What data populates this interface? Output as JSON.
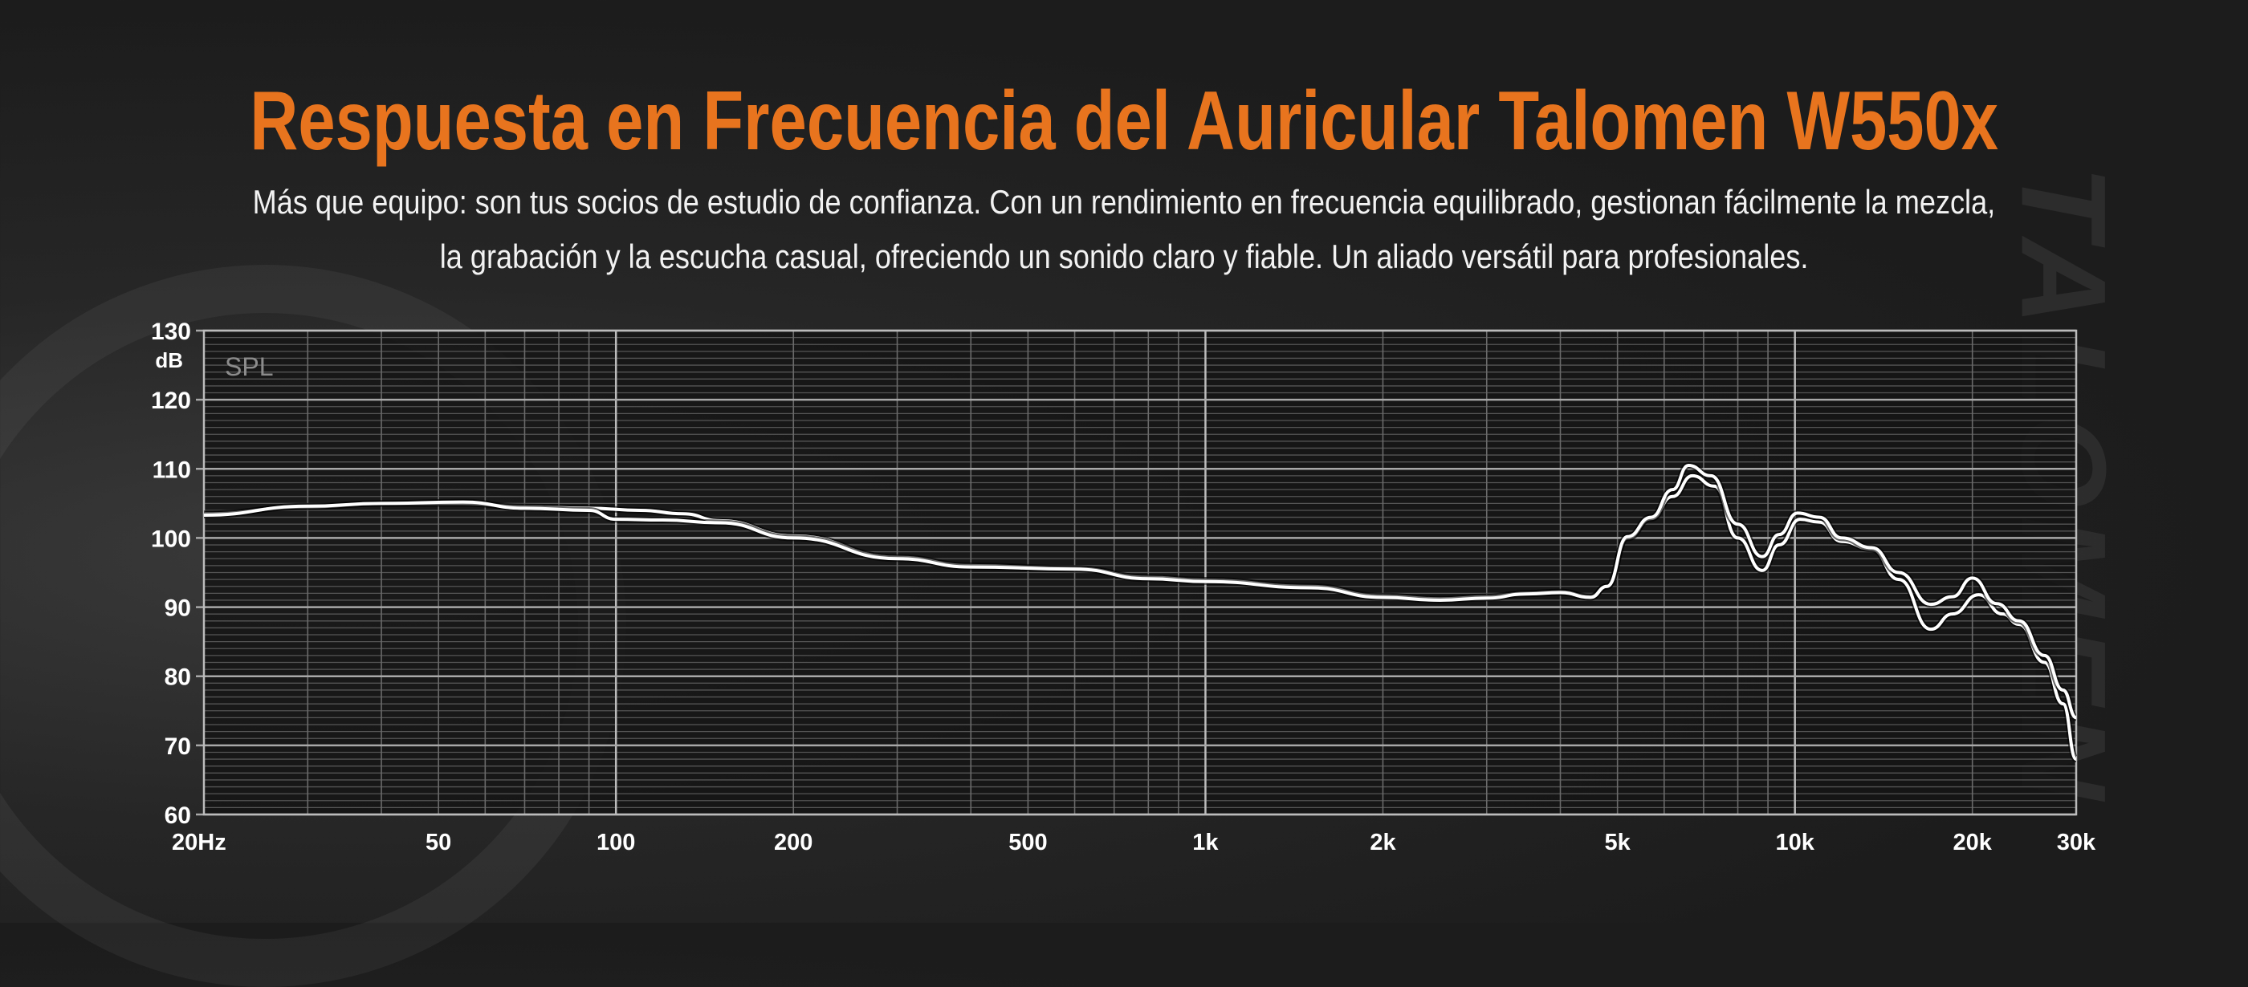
{
  "header": {
    "title": "Respuesta en Frecuencia del Auricular Talomen W550x",
    "subtitle_line1": "Más que equipo: son tus socios de estudio de confianza. Con un rendimiento en frecuencia equilibrado, gestionan fácilmente la mezcla,",
    "subtitle_line2": "la grabación y la escucha casual, ofreciendo un sonido claro y fiable. Un aliado versátil para profesionales."
  },
  "brand_watermark": "TALOMEN",
  "colors": {
    "title": "#e8741e",
    "curve": "#ffffff",
    "plot_bg": "#141414",
    "grid": "#8a8a8a"
  },
  "chart_data": {
    "type": "line",
    "title": "",
    "inner_label": "SPL",
    "ylabel": "dB",
    "xscale": "log",
    "xlim": [
      20,
      30000
    ],
    "ylim": [
      60,
      130
    ],
    "grid": true,
    "yticks": [
      130,
      120,
      110,
      100,
      90,
      80,
      70,
      60
    ],
    "xticks": [
      {
        "value": 20,
        "label": "20Hz"
      },
      {
        "value": 50,
        "label": "50"
      },
      {
        "value": 100,
        "label": "100"
      },
      {
        "value": 200,
        "label": "200"
      },
      {
        "value": 500,
        "label": "500"
      },
      {
        "value": 1000,
        "label": "1k"
      },
      {
        "value": 2000,
        "label": "2k"
      },
      {
        "value": 5000,
        "label": "5k"
      },
      {
        "value": 10000,
        "label": "10k"
      },
      {
        "value": 20000,
        "label": "20k"
      },
      {
        "value": 30000,
        "label": "30k"
      }
    ],
    "series": [
      {
        "points": [
          [
            20,
            103.5
          ],
          [
            30,
            104.5
          ],
          [
            40,
            105
          ],
          [
            55,
            105
          ],
          [
            70,
            104.5
          ],
          [
            90,
            104.3
          ],
          [
            110,
            104
          ],
          [
            130,
            103.5
          ],
          [
            150,
            102.5
          ],
          [
            200,
            100.3
          ],
          [
            300,
            97.2
          ],
          [
            400,
            96
          ],
          [
            600,
            95.6
          ],
          [
            800,
            94.3
          ],
          [
            1000,
            93.9
          ],
          [
            1500,
            93
          ],
          [
            2000,
            91.6
          ],
          [
            2500,
            91.2
          ],
          [
            3000,
            91.5
          ],
          [
            3500,
            92
          ],
          [
            4000,
            92.2
          ],
          [
            4500,
            91.5
          ],
          [
            4800,
            93
          ],
          [
            5200,
            100
          ],
          [
            5700,
            102.8
          ],
          [
            6200,
            106
          ],
          [
            6700,
            109
          ],
          [
            7300,
            107.5
          ],
          [
            8000,
            100
          ],
          [
            8800,
            95.3
          ],
          [
            9400,
            99
          ],
          [
            10200,
            102.7
          ],
          [
            11000,
            102.3
          ],
          [
            12000,
            99.5
          ],
          [
            13500,
            98.4
          ],
          [
            15000,
            94
          ],
          [
            17000,
            86.8
          ],
          [
            18500,
            89
          ],
          [
            20500,
            91.8
          ],
          [
            22500,
            89
          ],
          [
            24000,
            87.5
          ],
          [
            26500,
            82
          ],
          [
            28500,
            76
          ],
          [
            30000,
            68
          ]
        ]
      },
      {
        "points": [
          [
            20,
            103.3
          ],
          [
            30,
            104.6
          ],
          [
            40,
            105
          ],
          [
            55,
            105.2
          ],
          [
            70,
            104.3
          ],
          [
            90,
            104
          ],
          [
            100,
            102.7
          ],
          [
            120,
            102.6
          ],
          [
            150,
            102.2
          ],
          [
            200,
            100
          ],
          [
            300,
            97
          ],
          [
            400,
            95.8
          ],
          [
            600,
            95.5
          ],
          [
            800,
            94.1
          ],
          [
            1000,
            93.7
          ],
          [
            1500,
            92.8
          ],
          [
            2000,
            91.4
          ],
          [
            2500,
            91
          ],
          [
            3000,
            91.3
          ],
          [
            3500,
            91.9
          ],
          [
            4000,
            92.1
          ],
          [
            4500,
            91.4
          ],
          [
            4800,
            93
          ],
          [
            5200,
            100.2
          ],
          [
            5700,
            103
          ],
          [
            6200,
            107
          ],
          [
            6600,
            110.5
          ],
          [
            7200,
            109
          ],
          [
            8000,
            102
          ],
          [
            8800,
            97.3
          ],
          [
            9400,
            100.5
          ],
          [
            10100,
            103.6
          ],
          [
            11000,
            103
          ],
          [
            12000,
            100
          ],
          [
            13500,
            98.6
          ],
          [
            15000,
            95
          ],
          [
            17000,
            90.4
          ],
          [
            18500,
            91.5
          ],
          [
            20000,
            94.2
          ],
          [
            22000,
            90.5
          ],
          [
            24000,
            88
          ],
          [
            26500,
            83
          ],
          [
            28500,
            78
          ],
          [
            30000,
            74
          ]
        ]
      }
    ]
  }
}
